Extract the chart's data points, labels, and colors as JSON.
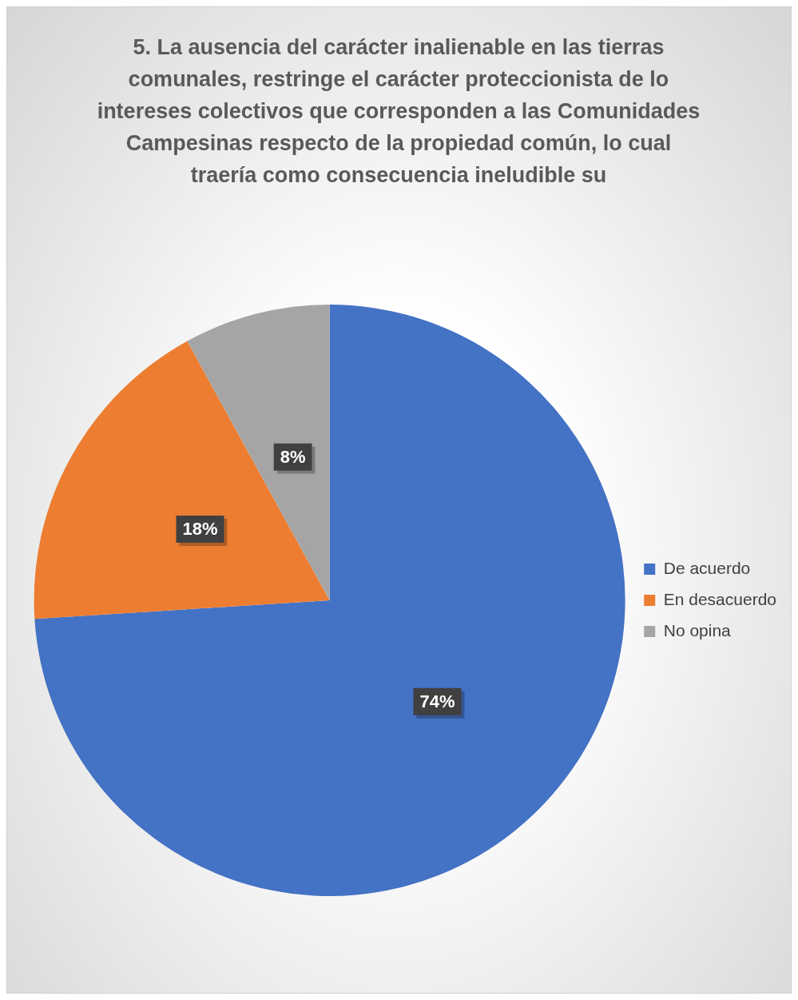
{
  "chart_data": {
    "type": "pie",
    "title": "5. La ausencia del carácter inalienable en las tierras comunales, restringe el carácter proteccionista de lo intereses colectivos que corresponden a las Comunidades Campesinas respecto de la propiedad común, lo cual traería como consecuencia ineludible su",
    "categories": [
      "De acuerdo",
      "En desacuerdo",
      "No opina"
    ],
    "values": [
      74,
      18,
      8
    ],
    "colors": [
      "#4472c4",
      "#ed7d31",
      "#a5a5a5"
    ],
    "value_labels": [
      "74%",
      "18%",
      "8%"
    ],
    "legend": "right"
  }
}
